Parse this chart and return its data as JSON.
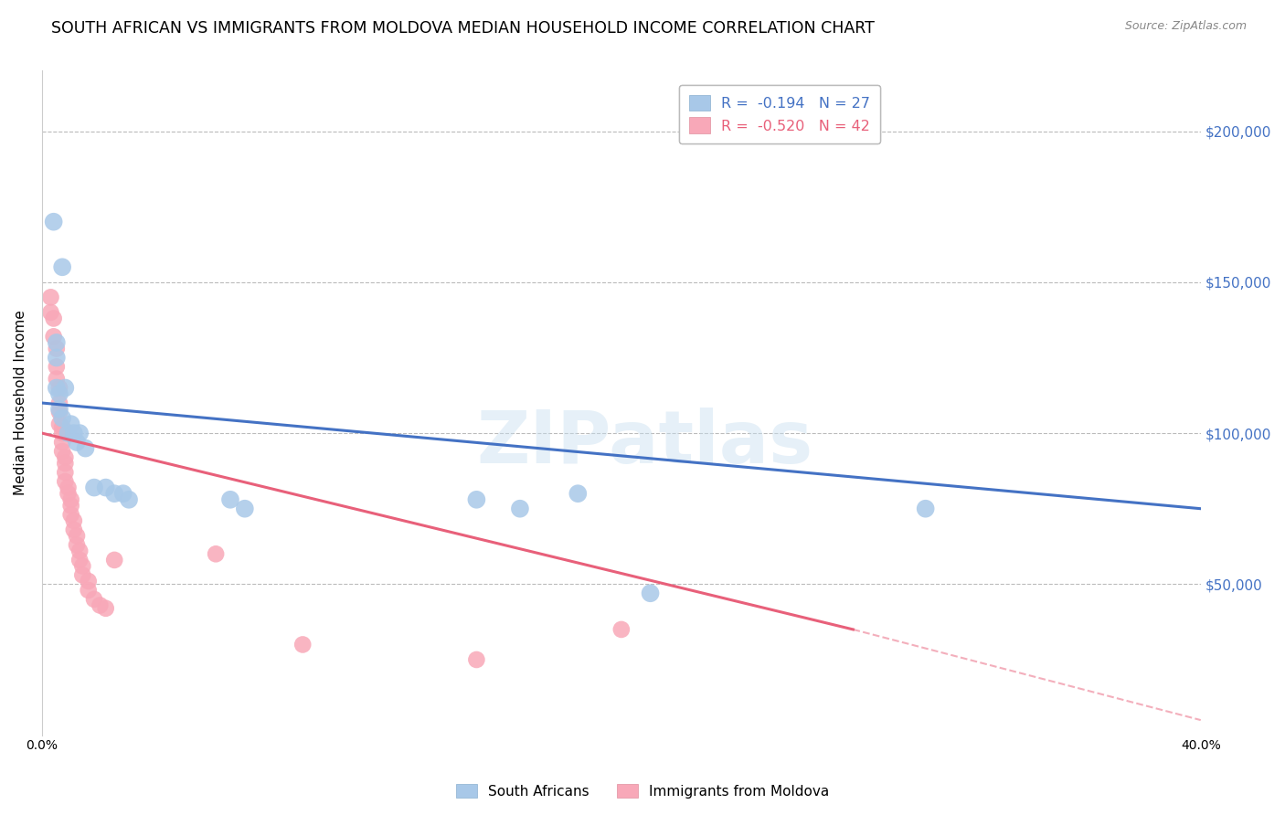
{
  "title": "SOUTH AFRICAN VS IMMIGRANTS FROM MOLDOVA MEDIAN HOUSEHOLD INCOME CORRELATION CHART",
  "source": "Source: ZipAtlas.com",
  "ylabel": "Median Household Income",
  "y_ticks": [
    50000,
    100000,
    150000,
    200000
  ],
  "y_tick_labels": [
    "$50,000",
    "$100,000",
    "$150,000",
    "$200,000"
  ],
  "xlim": [
    0.0,
    0.4
  ],
  "ylim": [
    0,
    220000
  ],
  "sa_line_color": "#4472c4",
  "moldova_line_color": "#e8607a",
  "sa_dot_color": "#a8c8e8",
  "moldova_dot_color": "#f8a8b8",
  "title_fontsize": 12.5,
  "axis_label_fontsize": 11,
  "tick_label_fontsize": 10,
  "background_color": "#ffffff",
  "grid_color": "#bbbbbb",
  "legend_entries": [
    {
      "label": "R =  -0.194   N = 27",
      "color": "#4472c4"
    },
    {
      "label": "R =  -0.520   N = 42",
      "color": "#e8607a"
    }
  ],
  "bottom_legend": [
    {
      "label": "South Africans",
      "color": "#a8c8e8"
    },
    {
      "label": "Immigrants from Moldova",
      "color": "#f8a8b8"
    }
  ],
  "sa_x": [
    0.004,
    0.007,
    0.005,
    0.005,
    0.005,
    0.006,
    0.006,
    0.007,
    0.008,
    0.009,
    0.01,
    0.011,
    0.012,
    0.013,
    0.015,
    0.018,
    0.022,
    0.025,
    0.028,
    0.03,
    0.065,
    0.07,
    0.15,
    0.165,
    0.185,
    0.305,
    0.21
  ],
  "sa_y": [
    170000,
    155000,
    130000,
    125000,
    115000,
    113000,
    108000,
    105000,
    115000,
    100000,
    103000,
    100000,
    97000,
    100000,
    95000,
    82000,
    82000,
    80000,
    80000,
    78000,
    78000,
    75000,
    78000,
    75000,
    80000,
    75000,
    47000
  ],
  "mol_x": [
    0.003,
    0.003,
    0.004,
    0.004,
    0.005,
    0.005,
    0.005,
    0.006,
    0.006,
    0.006,
    0.006,
    0.007,
    0.007,
    0.007,
    0.007,
    0.008,
    0.008,
    0.008,
    0.008,
    0.009,
    0.009,
    0.01,
    0.01,
    0.01,
    0.011,
    0.011,
    0.012,
    0.012,
    0.013,
    0.013,
    0.014,
    0.014,
    0.016,
    0.016,
    0.018,
    0.02,
    0.022,
    0.025,
    0.06,
    0.09,
    0.15,
    0.2
  ],
  "mol_y": [
    145000,
    140000,
    138000,
    132000,
    128000,
    122000,
    118000,
    115000,
    110000,
    107000,
    103000,
    102000,
    100000,
    97000,
    94000,
    92000,
    90000,
    87000,
    84000,
    82000,
    80000,
    78000,
    76000,
    73000,
    71000,
    68000,
    66000,
    63000,
    61000,
    58000,
    56000,
    53000,
    51000,
    48000,
    45000,
    43000,
    42000,
    58000,
    60000,
    30000,
    25000,
    35000
  ]
}
